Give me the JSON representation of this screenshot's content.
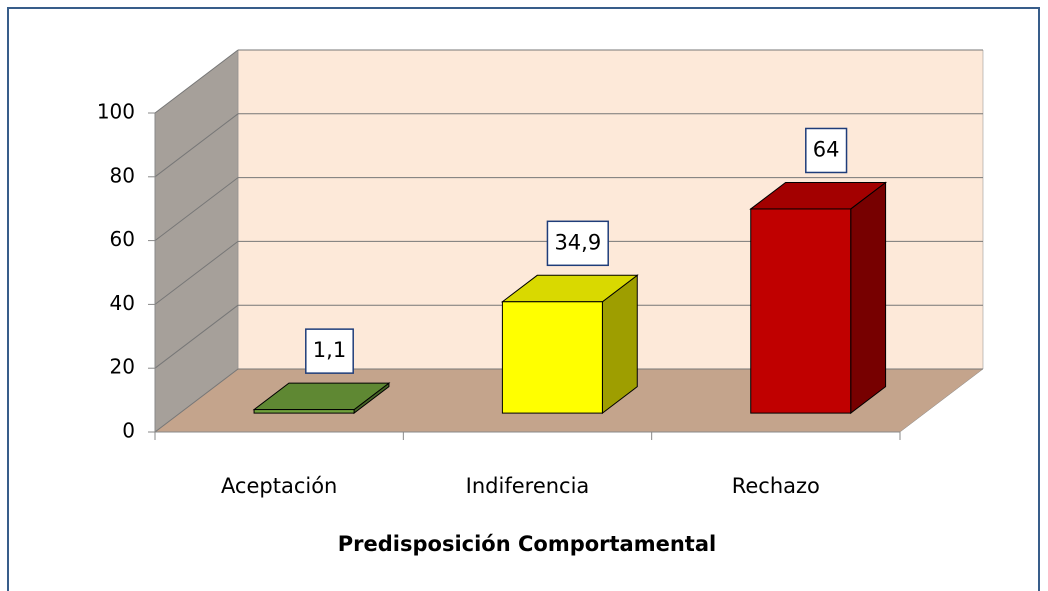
{
  "chart_data": {
    "type": "bar3d",
    "categories": [
      "Aceptación",
      "Indiferencia",
      "Rechazo"
    ],
    "values": [
      1.1,
      34.9,
      64
    ],
    "value_labels": [
      "1,1",
      "34,9",
      "64"
    ],
    "colors": [
      "#70a03c",
      "#ffff00",
      "#c00000"
    ],
    "x_label": "Predisposición Comportamental",
    "ylim": [
      0,
      100
    ],
    "yticks": [
      0,
      20,
      40,
      60,
      80,
      100
    ],
    "grid": true
  }
}
